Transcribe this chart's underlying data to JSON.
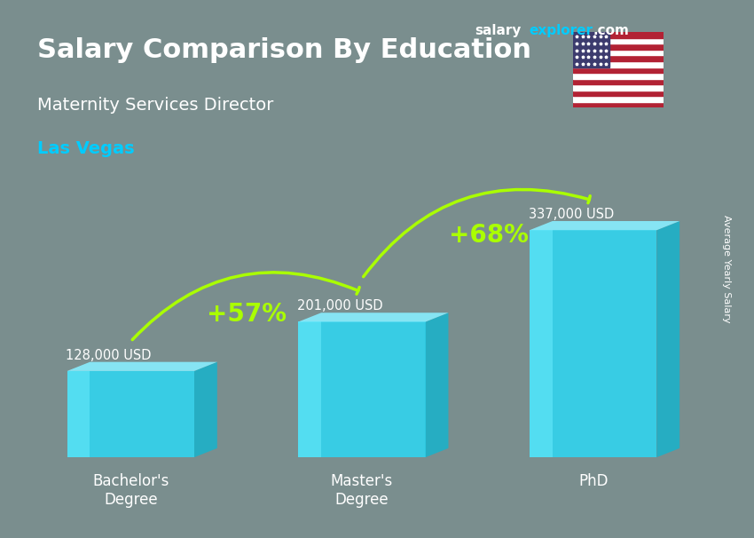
{
  "title_main": "Salary Comparison By Education",
  "subtitle": "Maternity Services Director",
  "location": "Las Vegas",
  "ylabel": "Average Yearly Salary",
  "categories": [
    "Bachelor's\nDegree",
    "Master's\nDegree",
    "PhD"
  ],
  "values": [
    128000,
    201000,
    337000
  ],
  "labels": [
    "128,000 USD",
    "201,000 USD",
    "337,000 USD"
  ],
  "bar_color_top": "#00d4f0",
  "bar_color_mid": "#00aacc",
  "bar_color_side": "#007799",
  "pct_labels": [
    "+57%",
    "+68%"
  ],
  "pct_color": "#aaff00",
  "bg_color": "#b0b0b0",
  "title_color": "#ffffff",
  "subtitle_color": "#ffffff",
  "location_color": "#00ccff",
  "label_color": "#ffffff",
  "brand_salary": "salary",
  "brand_explorer": "explorer",
  "brand_com": ".com",
  "figsize": [
    8.5,
    6.06
  ],
  "dpi": 100
}
